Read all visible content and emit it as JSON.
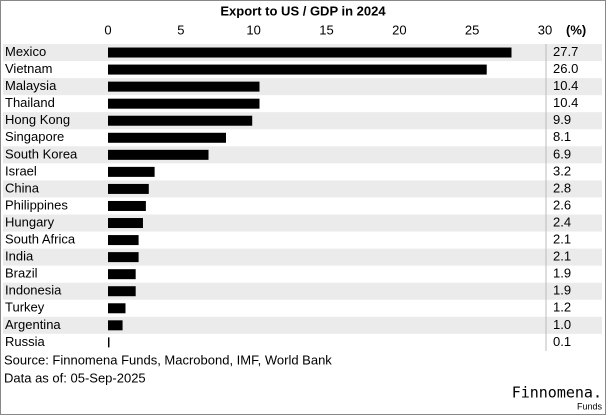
{
  "chart_data": {
    "type": "bar",
    "title": "Export to US / GDP in 2024",
    "unit_label": "(%)",
    "categories": [
      "Mexico",
      "Vietnam",
      "Malaysia",
      "Thailand",
      "Hong Kong",
      "Singapore",
      "South Korea",
      "Israel",
      "China",
      "Philippines",
      "Hungary",
      "South Africa",
      "India",
      "Brazil",
      "Indonesia",
      "Turkey",
      "Argentina",
      "Russia"
    ],
    "values": [
      27.7,
      26.0,
      10.4,
      10.4,
      9.9,
      8.1,
      6.9,
      3.2,
      2.8,
      2.6,
      2.4,
      2.1,
      2.1,
      1.9,
      1.9,
      1.2,
      1.0,
      0.1
    ],
    "value_labels": [
      "27.7",
      "26.0",
      "10.4",
      "10.4",
      "9.9",
      "8.1",
      "6.9",
      "3.2",
      "2.8",
      "2.6",
      "2.4",
      "2.1",
      "2.1",
      "1.9",
      "1.9",
      "1.2",
      "1.0",
      "0.1"
    ],
    "color": "#000000",
    "xlim": [
      0,
      30
    ],
    "xticks": [
      0,
      5,
      10,
      15,
      20,
      25,
      30
    ],
    "source": "Source: Finnomena Funds, Macrobond, IMF, World Bank",
    "date_note": "Data as of: 05-Sep-2025",
    "logo": "Finnomena.",
    "logo_sub": "Funds"
  }
}
